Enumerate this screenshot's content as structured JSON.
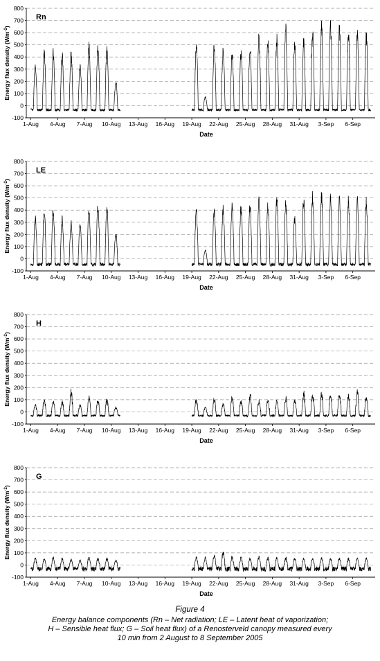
{
  "chart_data": [
    {
      "type": "line",
      "panel_label": "Rn",
      "ylabel": "Energy flux density (Wm",
      "ylabel_sup": "-2",
      "ylabel_close": ")",
      "xlabel": "Date",
      "ylim": [
        -100,
        800
      ],
      "yticks": [
        "-100",
        "0",
        "100",
        "200",
        "300",
        "400",
        "500",
        "600",
        "700",
        "800"
      ],
      "xticks": [
        "1-Aug",
        "4-Aug",
        "7-Aug",
        "10-Aug",
        "13-Aug",
        "16-Aug",
        "19-Aug",
        "22-Aug",
        "25-Aug",
        "28-Aug",
        "31-Aug",
        "3-Sep",
        "6-Sep"
      ],
      "grid": true,
      "series": [
        {
          "day_start": [
            1,
            2,
            3,
            4,
            5,
            6,
            7,
            8,
            9,
            10,
            19,
            20,
            21,
            22,
            23,
            24,
            25,
            26,
            27,
            28,
            29,
            30,
            31,
            32,
            33,
            34,
            35,
            36,
            37,
            38
          ],
          "day_peak": [
            390,
            480,
            485,
            450,
            455,
            360,
            530,
            540,
            500,
            220,
            550,
            80,
            540,
            500,
            480,
            485,
            530,
            620,
            560,
            600,
            680,
            560,
            610,
            660,
            700,
            715,
            690,
            650,
            660,
            630
          ],
          "night_min": -45
        }
      ]
    },
    {
      "type": "line",
      "panel_label": "LE",
      "ylabel": "Energy flux density (Wm",
      "ylabel_sup": "-2",
      "ylabel_close": ")",
      "xlabel": "Date",
      "ylim": [
        -100,
        800
      ],
      "yticks": [
        "-100",
        "0",
        "100",
        "200",
        "300",
        "400",
        "500",
        "600",
        "700",
        "800"
      ],
      "xticks": [
        "1-Aug",
        "4-Aug",
        "7-Aug",
        "10-Aug",
        "13-Aug",
        "16-Aug",
        "19-Aug",
        "22-Aug",
        "25-Aug",
        "28-Aug",
        "31-Aug",
        "3-Sep",
        "6-Sep"
      ],
      "grid": true,
      "series": [
        {
          "day_start": [
            1,
            2,
            3,
            4,
            5,
            6,
            7,
            8,
            9,
            10,
            19,
            20,
            21,
            22,
            23,
            24,
            25,
            26,
            27,
            28,
            29,
            30,
            31,
            32,
            33,
            34,
            35,
            36,
            37,
            38
          ],
          "day_peak": [
            370,
            420,
            440,
            360,
            320,
            305,
            440,
            480,
            460,
            225,
            440,
            80,
            420,
            450,
            470,
            470,
            490,
            540,
            510,
            530,
            500,
            380,
            540,
            560,
            575,
            540,
            530,
            520,
            525,
            515
          ],
          "night_min": -60
        }
      ]
    },
    {
      "type": "line",
      "panel_label": "H",
      "ylabel": "Energy flux density (Wm",
      "ylabel_sup": "-2",
      "ylabel_close": ")",
      "xlabel": "Date",
      "ylim": [
        -100,
        800
      ],
      "yticks": [
        "-100",
        "0",
        "100",
        "200",
        "300",
        "400",
        "500",
        "600",
        "700",
        "800"
      ],
      "xticks": [
        "1-Aug",
        "4-Aug",
        "7-Aug",
        "10-Aug",
        "13-Aug",
        "16-Aug",
        "19-Aug",
        "22-Aug",
        "25-Aug",
        "28-Aug",
        "31-Aug",
        "3-Sep",
        "6-Sep"
      ],
      "grid": true,
      "series": [
        {
          "day_start": [
            1,
            2,
            3,
            4,
            5,
            6,
            7,
            8,
            9,
            10,
            19,
            20,
            21,
            22,
            23,
            24,
            25,
            26,
            27,
            28,
            29,
            30,
            31,
            32,
            33,
            34,
            35,
            36,
            37,
            38
          ],
          "day_peak": [
            60,
            105,
            100,
            95,
            180,
            60,
            130,
            100,
            105,
            40,
            110,
            40,
            115,
            75,
            120,
            95,
            145,
            95,
            110,
            100,
            125,
            100,
            160,
            150,
            160,
            150,
            165,
            140,
            175,
            130
          ],
          "night_min": -40
        }
      ]
    },
    {
      "type": "line",
      "panel_label": "G",
      "ylabel": "Energy flux density (Wm",
      "ylabel_sup": "-2",
      "ylabel_close": ")",
      "xlabel": "Date",
      "ylim": [
        -100,
        800
      ],
      "yticks": [
        "-100",
        "0",
        "100",
        "200",
        "300",
        "400",
        "500",
        "600",
        "700",
        "800"
      ],
      "xticks": [
        "1-Aug",
        "4-Aug",
        "7-Aug",
        "10-Aug",
        "13-Aug",
        "16-Aug",
        "19-Aug",
        "22-Aug",
        "25-Aug",
        "28-Aug",
        "31-Aug",
        "3-Sep",
        "6-Sep"
      ],
      "grid": true,
      "series": [
        {
          "day_start": [
            1,
            2,
            3,
            4,
            5,
            6,
            7,
            8,
            9,
            10,
            19,
            20,
            21,
            22,
            23,
            24,
            25,
            26,
            27,
            28,
            29,
            30,
            31,
            32,
            33,
            34,
            35,
            36,
            37,
            38
          ],
          "day_peak": [
            55,
            60,
            65,
            55,
            50,
            40,
            70,
            60,
            60,
            45,
            70,
            60,
            80,
            115,
            70,
            65,
            60,
            70,
            65,
            65,
            60,
            60,
            55,
            60,
            65,
            55,
            60,
            55,
            60,
            55
          ],
          "night_min": -50
        }
      ]
    }
  ],
  "caption": {
    "title": "Figure 4",
    "line1": "Energy balance components (Rn – Net radiation; LE – Latent heat of vaporization;",
    "line2": "H – Sensible heat flux; G – Soil heat flux) of a Renosterveld canopy measured every",
    "line3": "10 min from 2 August to 8 September 2005"
  }
}
